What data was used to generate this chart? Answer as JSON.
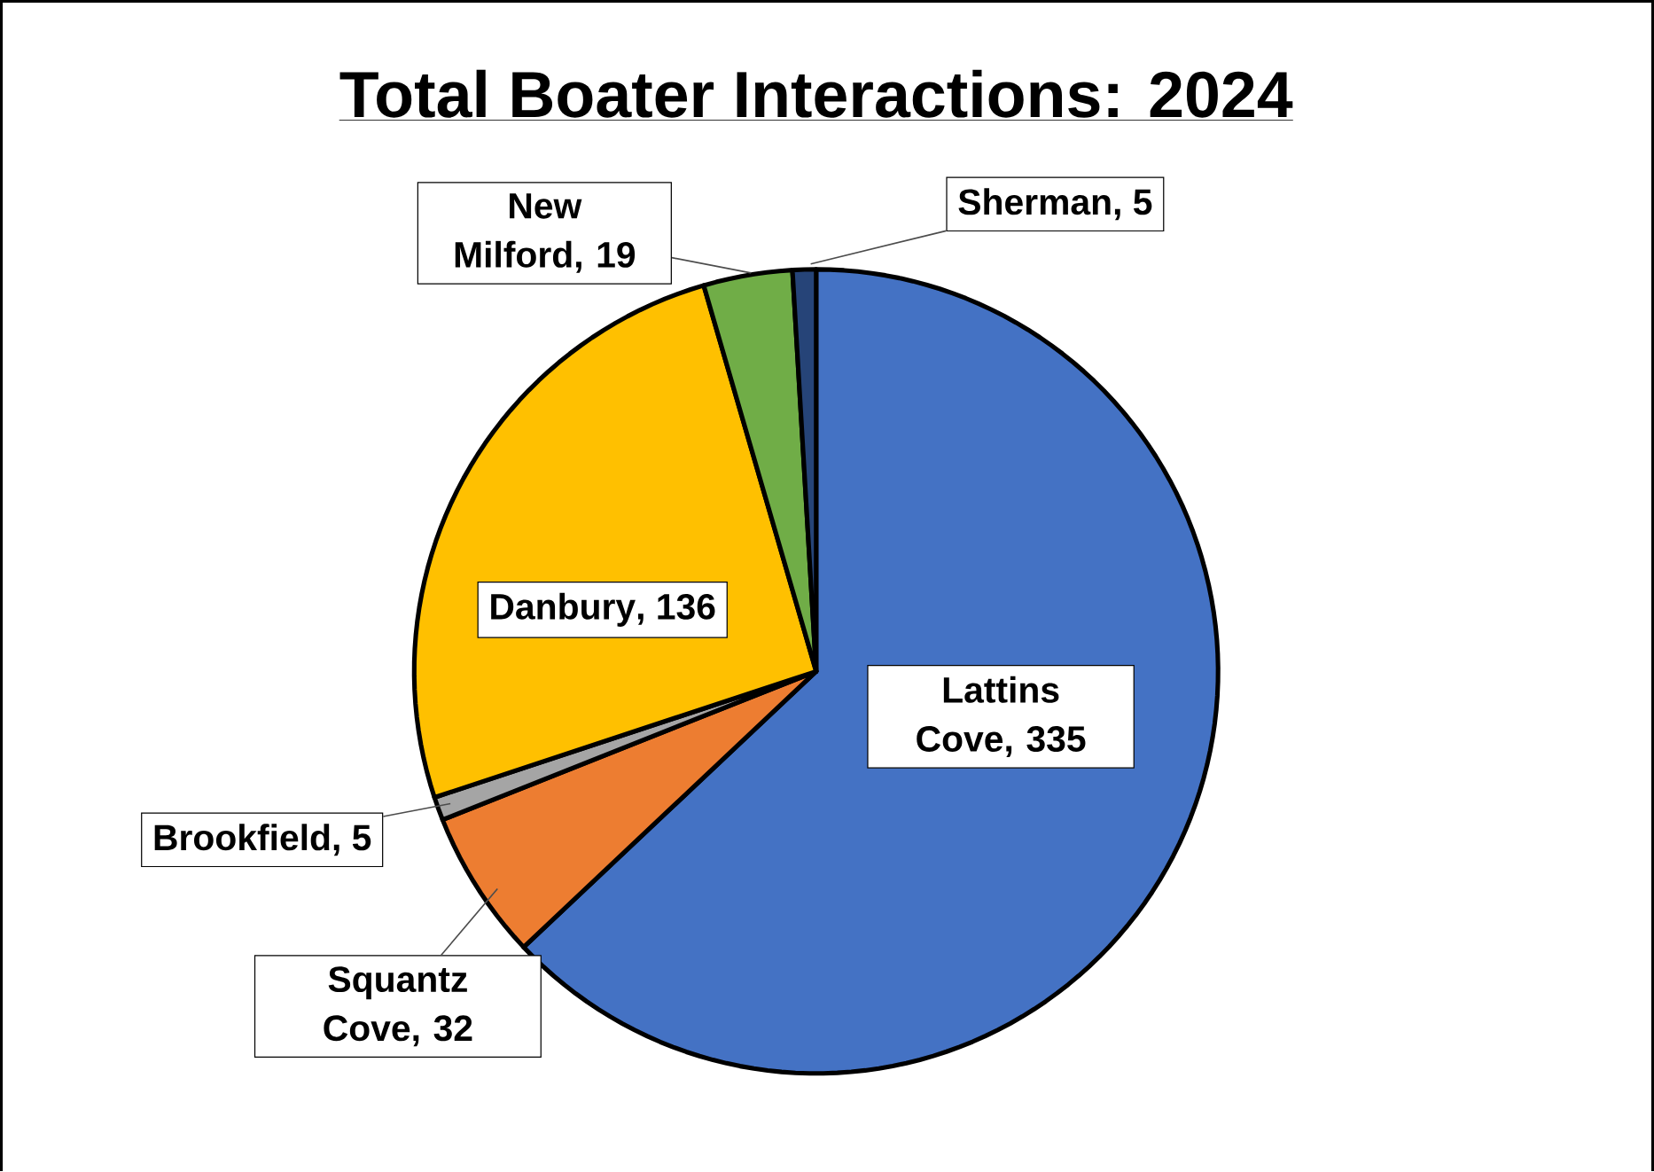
{
  "chart_data": {
    "type": "pie",
    "title": "Total Boater Interactions: 2024",
    "categories": [
      "Lattins Cove",
      "Squantz Cove",
      "Brookfield",
      "Danbury",
      "New Milford",
      "Sherman"
    ],
    "values": [
      335,
      32,
      5,
      136,
      19,
      5
    ],
    "colors": [
      "#4472c4",
      "#ed7d31",
      "#a5a5a5",
      "#ffc000",
      "#70ad47",
      "#264478"
    ],
    "value_labels": [
      ", 335",
      ", 32",
      ", 5",
      ", 136",
      ", 19",
      ", 5"
    ],
    "legend": false
  }
}
